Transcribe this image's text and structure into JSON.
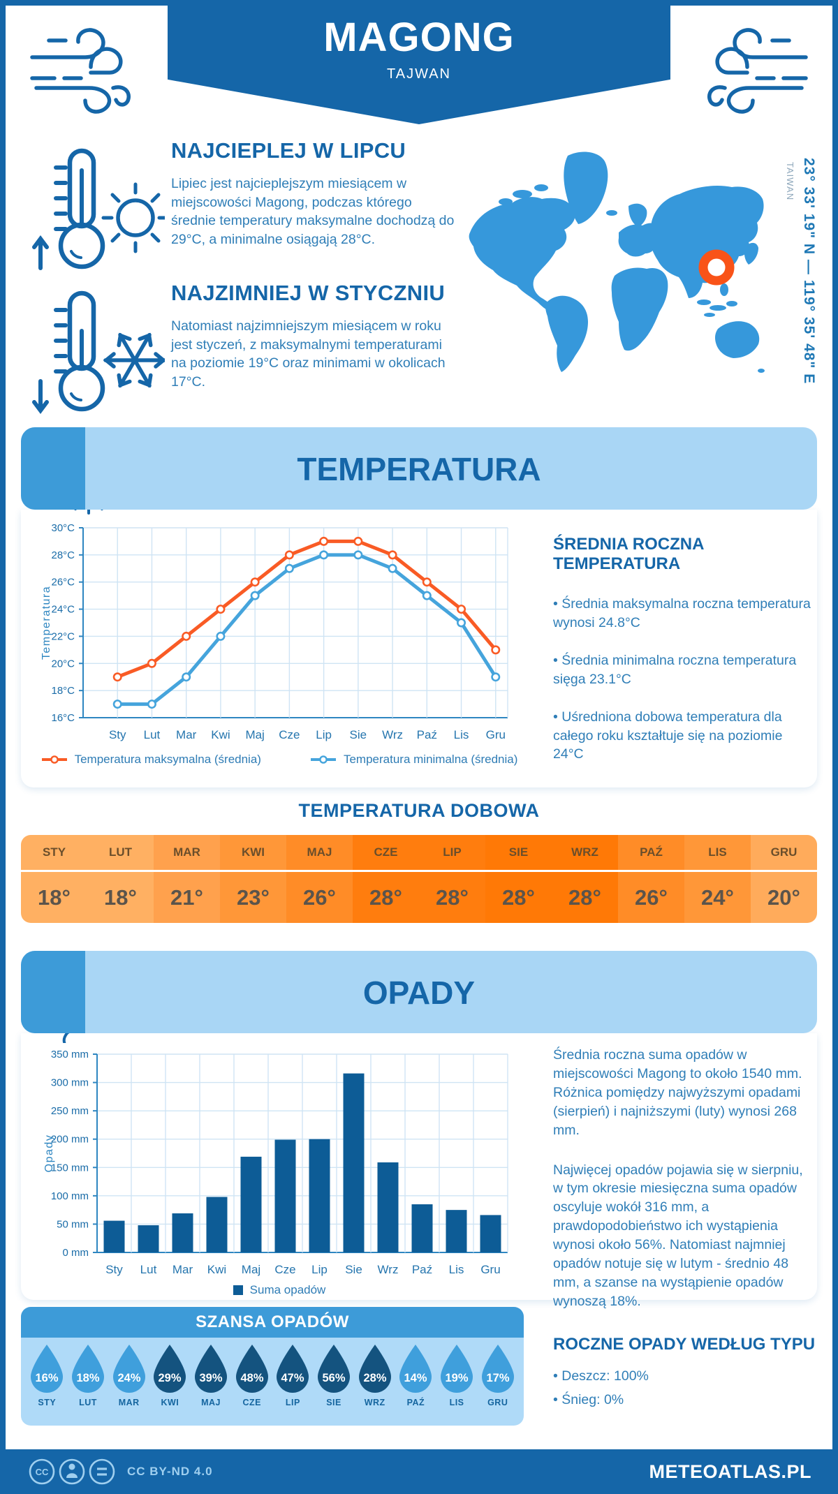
{
  "page": {
    "title": "MAGONG",
    "subtitle": "TAJWAN",
    "coordinates": "23° 33' 19\" N — 119° 35' 48\" E",
    "coordinates_country": "TAIWAN"
  },
  "warmest": {
    "heading": "NAJCIEPLEJ W LIPCU",
    "text": "Lipiec jest najcieplejszym miesiącem w miejscowości Magong, podczas którego średnie temperatury maksymalne dochodzą do 29°C, a minimalne osiągają 28°C."
  },
  "coldest": {
    "heading": "NAJZIMNIEJ W STYCZNIU",
    "text": "Natomiast najzimniejszym miesiącem w roku jest styczeń, z maksymalnymi temperaturami na poziomie 19°C oraz minimami w okolicach 17°C."
  },
  "temperature_section": {
    "title": "TEMPERATURA",
    "annual": {
      "heading": "ŚREDNIA ROCZNA TEMPERATURA",
      "bullets": [
        "• Średnia maksymalna roczna temperatura wynosi 24.8°C",
        "• Średnia minimalna roczna temperatura sięga 23.1°C",
        "• Uśredniona dobowa temperatura dla całego roku kształtuje się na poziomie 24°C"
      ]
    },
    "daily": {
      "heading": "TEMPERATURA DOBOWA",
      "months": [
        "STY",
        "LUT",
        "MAR",
        "KWI",
        "MAJ",
        "CZE",
        "LIP",
        "SIE",
        "WRZ",
        "PAŹ",
        "LIS",
        "GRU"
      ],
      "values": [
        "18°",
        "18°",
        "21°",
        "23°",
        "26°",
        "28°",
        "28°",
        "28°",
        "28°",
        "26°",
        "24°",
        "20°"
      ],
      "cell_colors": [
        "#ffb062",
        "#ffb062",
        "#ffa14d",
        "#ff9738",
        "#ff8c27",
        "#ff7d0e",
        "#ff7d0e",
        "#ff7906",
        "#ff7906",
        "#ff8c27",
        "#ff9738",
        "#ffab5b"
      ]
    }
  },
  "chart_data": [
    {
      "type": "line",
      "title": "Temperatura",
      "categories": [
        "Sty",
        "Lut",
        "Mar",
        "Kwi",
        "Maj",
        "Cze",
        "Lip",
        "Sie",
        "Wrz",
        "Paź",
        "Lis",
        "Gru"
      ],
      "series": [
        {
          "name": "Temperatura maksymalna (średnia)",
          "color": "#F95B25",
          "values": [
            19,
            20,
            22,
            24,
            26,
            28,
            29,
            29,
            28,
            26,
            24,
            21
          ]
        },
        {
          "name": "Temperatura minimalna (średnia)",
          "color": "#45A4DC",
          "values": [
            17,
            17,
            19,
            22,
            25,
            27,
            28,
            28,
            27,
            25,
            23,
            19
          ]
        }
      ],
      "xlabel": "",
      "ylabel": "Temperatura",
      "ylim": [
        16,
        30
      ],
      "ytick_step": 2,
      "ytick_suffix": "°C",
      "grid": true,
      "legend_position": "bottom"
    },
    {
      "type": "bar",
      "title": "Opady",
      "categories": [
        "Sty",
        "Lut",
        "Mar",
        "Kwi",
        "Maj",
        "Cze",
        "Lip",
        "Sie",
        "Wrz",
        "Paź",
        "Lis",
        "Gru"
      ],
      "series": [
        {
          "name": "Suma opadów",
          "color": "#0D5C96",
          "values": [
            56,
            48,
            69,
            98,
            169,
            199,
            200,
            316,
            159,
            85,
            75,
            66
          ]
        }
      ],
      "xlabel": "",
      "ylabel": "Opady",
      "ylim": [
        0,
        350
      ],
      "ytick_step": 50,
      "ytick_suffix": " mm",
      "grid": true,
      "legend_position": "bottom"
    }
  ],
  "precipitation_section": {
    "title": "OPADY",
    "paragraphs": [
      "Średnia roczna suma opadów w miejscowości Magong to około 1540 mm. Różnica pomiędzy najwyższymi opadami (sierpień) i najniższymi (luty) wynosi 268 mm.",
      "Najwięcej opadów pojawia się w sierpniu, w tym okresie miesięczna suma opadów oscyluje wokół 316 mm, a prawdopodobieństwo ich wystąpienia wynosi około 56%. Natomiast najmniej opadów notuje się w lutym - średnio 48 mm, a szanse na wystąpienie opadów wynoszą 18%."
    ],
    "type_heading": "ROCZNE OPADY WEDŁUG TYPU",
    "type_bullets": [
      "• Deszcz: 100%",
      "• Śnieg: 0%"
    ]
  },
  "rain_chance": {
    "title": "SZANSA OPADÓW",
    "months": [
      "STY",
      "LUT",
      "MAR",
      "KWI",
      "MAJ",
      "CZE",
      "LIP",
      "SIE",
      "WRZ",
      "PAŹ",
      "LIS",
      "GRU"
    ],
    "values": [
      "16%",
      "18%",
      "24%",
      "29%",
      "39%",
      "48%",
      "47%",
      "56%",
      "28%",
      "14%",
      "19%",
      "17%"
    ],
    "tiers": [
      "light",
      "light",
      "light",
      "dark",
      "dark",
      "dark",
      "dark",
      "dark",
      "dark",
      "light",
      "light",
      "light"
    ]
  },
  "footer": {
    "license": "CC BY-ND 4.0",
    "site": "METEOATLAS.PL"
  },
  "colors": {
    "primary": "#1566A8",
    "body_text": "#2F7EB7",
    "banner_light": "#A9D6F5",
    "banner_corner": "#3D9BD8",
    "map_blue": "#3698DB",
    "marker_orange": "#F95318",
    "max_line": "#F95B25",
    "min_line": "#45A4DC",
    "bar": "#0D5C96",
    "drop_light": "#3F9FDC",
    "drop_dark": "#14537F",
    "chance_header": "#3D9BD8",
    "chance_body": "#AFDAF8",
    "footer_text": "#9FCFEF"
  }
}
